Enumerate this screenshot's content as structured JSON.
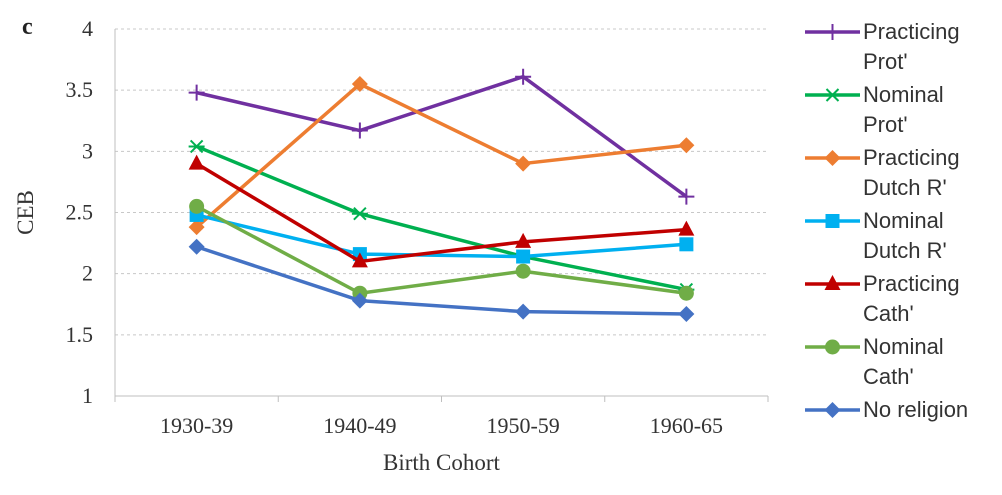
{
  "panel_label": "c",
  "chart_data": {
    "type": "line",
    "xlabel": "Birth Cohort",
    "ylabel": "CEB",
    "ylim": [
      1,
      4
    ],
    "yticks": [
      "1",
      "1.5",
      "2",
      "2.5",
      "3",
      "3.5",
      "4"
    ],
    "categories": [
      "1930-39",
      "1940-49",
      "1950-59",
      "1960-65"
    ],
    "grid": "horizontal dashed",
    "legend_position": "right",
    "series": [
      {
        "name": "Practicing Prot'",
        "legend_lines": [
          "Practicing",
          "Prot'"
        ],
        "color": "#7030A0",
        "marker": "plus",
        "values": [
          3.48,
          3.17,
          3.61,
          2.63
        ]
      },
      {
        "name": "Nominal Prot'",
        "legend_lines": [
          "Nominal",
          "Prot'"
        ],
        "color": "#00B050",
        "marker": "star",
        "values": [
          3.04,
          2.49,
          2.14,
          1.87
        ]
      },
      {
        "name": "Practicing Dutch R'",
        "legend_lines": [
          "Practicing",
          "Dutch R'"
        ],
        "color": "#ED7D31",
        "marker": "diamond",
        "values": [
          2.38,
          3.55,
          2.9,
          3.05
        ]
      },
      {
        "name": "Nominal Dutch R'",
        "legend_lines": [
          "Nominal",
          "Dutch R'"
        ],
        "color": "#00B0F0",
        "marker": "square",
        "values": [
          2.48,
          2.16,
          2.14,
          2.24
        ]
      },
      {
        "name": "Practicing Cath'",
        "legend_lines": [
          "Practicing",
          "Cath'"
        ],
        "color": "#C00000",
        "marker": "triangle",
        "values": [
          2.9,
          2.1,
          2.26,
          2.36
        ]
      },
      {
        "name": "Nominal Cath'",
        "legend_lines": [
          "Nominal",
          "Cath'"
        ],
        "color": "#70AD47",
        "marker": "circle",
        "values": [
          2.55,
          1.84,
          2.02,
          1.84
        ]
      },
      {
        "name": "No religion",
        "legend_lines": [
          "No religion"
        ],
        "color": "#4472C4",
        "marker": "diamond",
        "values": [
          2.22,
          1.78,
          1.69,
          1.67
        ]
      }
    ]
  }
}
